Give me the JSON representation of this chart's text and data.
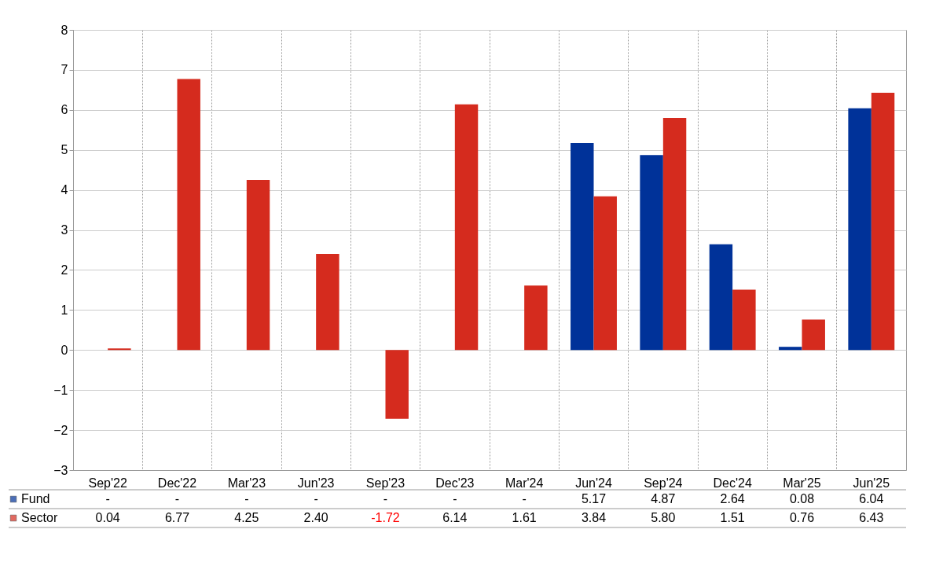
{
  "chart_data": {
    "type": "bar",
    "categories": [
      "Sep'22",
      "Dec'22",
      "Mar'23",
      "Jun'23",
      "Sep'23",
      "Dec'23",
      "Mar'24",
      "Jun'24",
      "Sep'24",
      "Dec'24",
      "Mar'25",
      "Jun'25"
    ],
    "series": [
      {
        "name": "Fund",
        "color": "#003299",
        "values": [
          null,
          null,
          null,
          null,
          null,
          null,
          null,
          5.17,
          4.87,
          2.64,
          0.08,
          6.04
        ],
        "value_labels": [
          "-",
          "-",
          "-",
          "-",
          "-",
          "-",
          "-",
          "5.17",
          "4.87",
          "2.64",
          "0.08",
          "6.04"
        ]
      },
      {
        "name": "Sector",
        "color": "#d52b1e",
        "values": [
          0.04,
          6.77,
          4.25,
          2.4,
          -1.72,
          6.14,
          1.61,
          3.84,
          5.8,
          1.51,
          0.76,
          6.43
        ],
        "value_labels": [
          "0.04",
          "6.77",
          "4.25",
          "2.40",
          "-1.72",
          "6.14",
          "1.61",
          "3.84",
          "5.80",
          "1.51",
          "0.76",
          "6.43"
        ]
      }
    ],
    "ylim": [
      -3,
      8
    ],
    "yticks": [
      -3,
      -2,
      -1,
      0,
      1,
      2,
      3,
      4,
      5,
      6,
      7,
      8
    ],
    "grid": true,
    "legend": "bottom left"
  }
}
